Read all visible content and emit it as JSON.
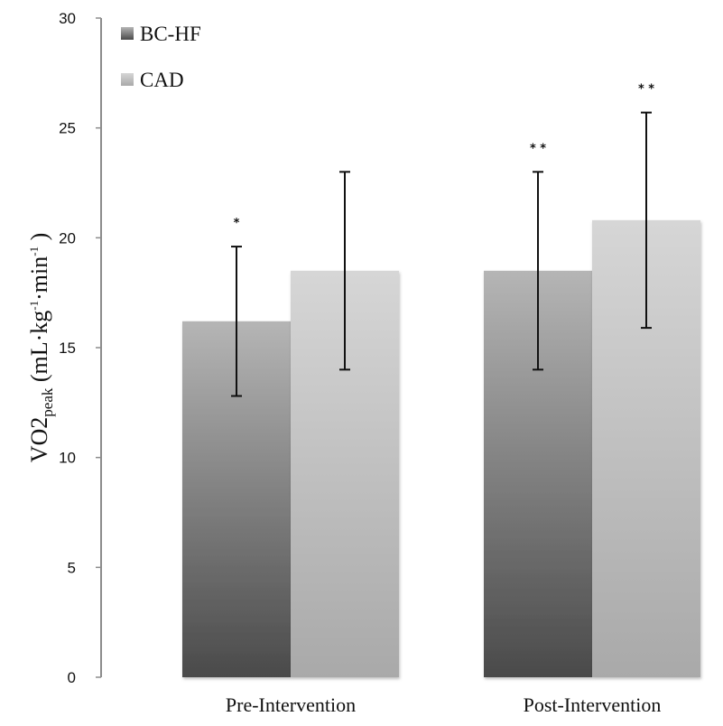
{
  "chart_data": {
    "type": "bar",
    "title": "",
    "xlabel": "",
    "ylabel": {
      "main": "VO2",
      "subscript": "peak",
      "units_prefix": " (mL·kg",
      "sup1": "-1",
      "units_mid": "·min",
      "sup2": "-1",
      "units_suffix": " )"
    },
    "ylim": [
      0,
      30
    ],
    "yticks": [
      0,
      5,
      10,
      15,
      20,
      25,
      30
    ],
    "grid": false,
    "legend_position": "top-left",
    "categories": [
      "Pre-Intervention",
      "Post-Intervention"
    ],
    "series": [
      {
        "name": "BC-HF",
        "color_top": "#b5b5b5",
        "color_bottom": "#4a4a4a",
        "values": [
          16.2,
          18.5
        ],
        "error_low": [
          12.8,
          14.0
        ],
        "error_high": [
          19.6,
          23.0
        ],
        "annotations": [
          "*",
          "**"
        ]
      },
      {
        "name": "CAD",
        "color_top": "#d6d6d6",
        "color_bottom": "#a9a9a9",
        "values": [
          18.5,
          20.8
        ],
        "error_low": [
          14.0,
          15.9
        ],
        "error_high": [
          23.0,
          25.7
        ],
        "annotations": [
          "",
          "**"
        ]
      }
    ]
  }
}
